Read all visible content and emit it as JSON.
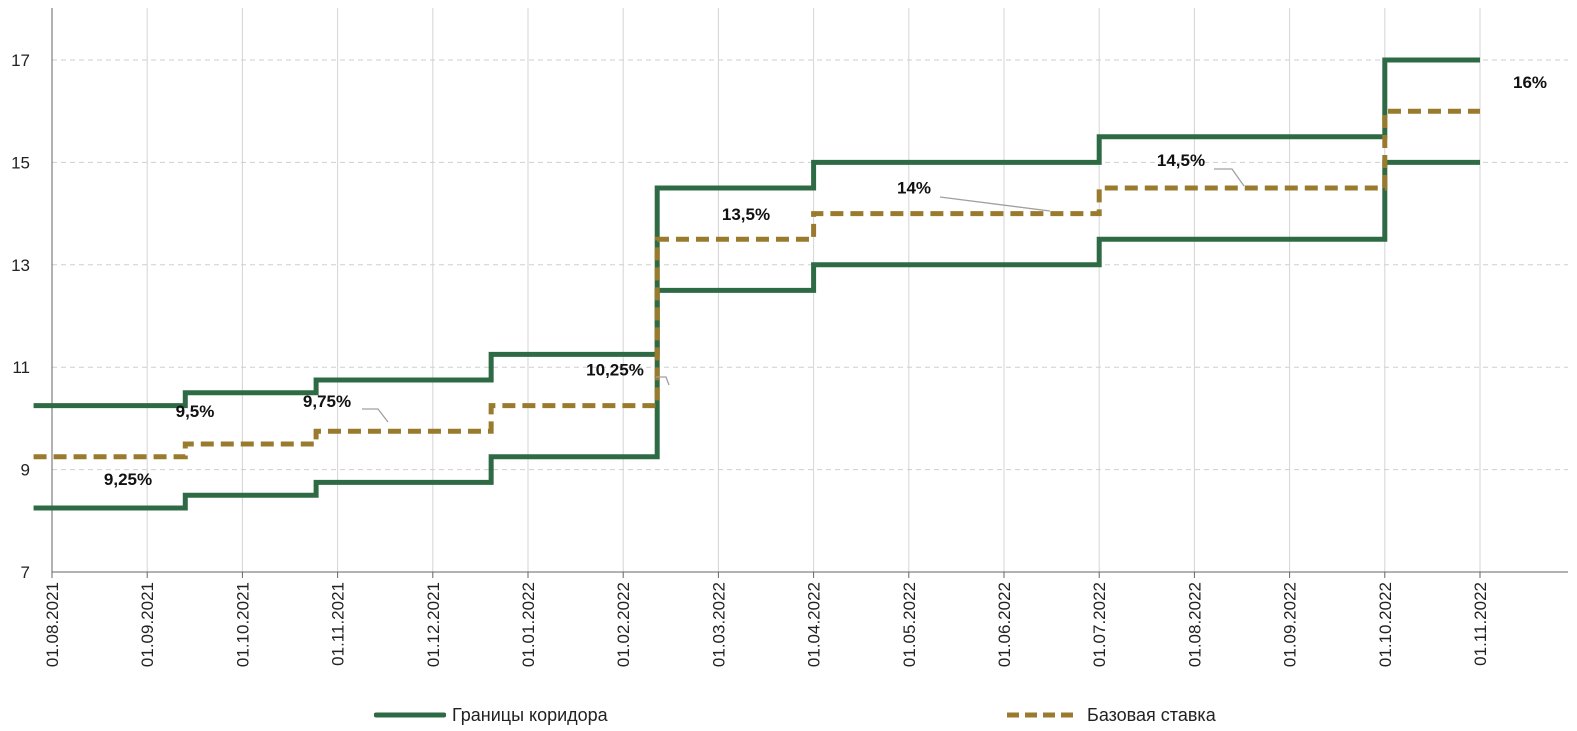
{
  "chart_data": {
    "type": "line",
    "step": true,
    "x_categories": [
      "01.08.2021",
      "01.09.2021",
      "01.10.2021",
      "01.11.2021",
      "01.12.2021",
      "01.01.2022",
      "01.02.2022",
      "01.03.2022",
      "01.04.2022",
      "01.05.2022",
      "01.06.2022",
      "01.07.2022",
      "01.08.2022",
      "01.09.2022",
      "01.10.2022",
      "01.11.2022"
    ],
    "ylim": [
      7,
      18
    ],
    "yticks": [
      7,
      9,
      11,
      13,
      15,
      17
    ],
    "grid": true,
    "legend_position": "bottom",
    "series": [
      {
        "name": "Границы коридора",
        "role": "upper",
        "color": "#2e6b45",
        "style": "solid",
        "points": [
          [
            "26.07.2021",
            10.25
          ],
          [
            "13.09.2021",
            10.5
          ],
          [
            "25.10.2021",
            10.75
          ],
          [
            "20.12.2021",
            11.25
          ],
          [
            "11.02.2022",
            14.5
          ],
          [
            "01.04.2022",
            15
          ],
          [
            "01.07.2022",
            15.5
          ],
          [
            "01.10.2022",
            17
          ],
          [
            "01.11.2022",
            17
          ]
        ]
      },
      {
        "name": "Границы коридора",
        "role": "lower",
        "color": "#2e6b45",
        "style": "solid",
        "points": [
          [
            "26.07.2021",
            8.25
          ],
          [
            "13.09.2021",
            8.5
          ],
          [
            "25.10.2021",
            8.75
          ],
          [
            "20.12.2021",
            9.25
          ],
          [
            "11.02.2022",
            12.5
          ],
          [
            "01.04.2022",
            13
          ],
          [
            "01.07.2022",
            13.5
          ],
          [
            "01.10.2022",
            15
          ],
          [
            "01.11.2022",
            15
          ]
        ]
      },
      {
        "name": "Базовая ставка",
        "color": "#9a7b2e",
        "style": "dashed",
        "points": [
          [
            "26.07.2021",
            9.25
          ],
          [
            "13.09.2021",
            9.5
          ],
          [
            "25.10.2021",
            9.75
          ],
          [
            "20.12.2021",
            10.25
          ],
          [
            "11.02.2022",
            13.5
          ],
          [
            "01.04.2022",
            14
          ],
          [
            "01.07.2022",
            14.5
          ],
          [
            "01.10.2022",
            16
          ],
          [
            "01.11.2022",
            16
          ]
        ]
      }
    ],
    "annotations": [
      {
        "text": "9,25%",
        "value": 9.25
      },
      {
        "text": "9,5%",
        "value": 9.5
      },
      {
        "text": "9,75%",
        "value": 9.75
      },
      {
        "text": "10,25%",
        "value": 10.25
      },
      {
        "text": "13,5%",
        "value": 13.5
      },
      {
        "text": "14%",
        "value": 14
      },
      {
        "text": "14,5%",
        "value": 14.5
      },
      {
        "text": "16%",
        "value": 16
      }
    ],
    "legend": [
      "Границы коридора",
      "Базовая ставка"
    ]
  }
}
